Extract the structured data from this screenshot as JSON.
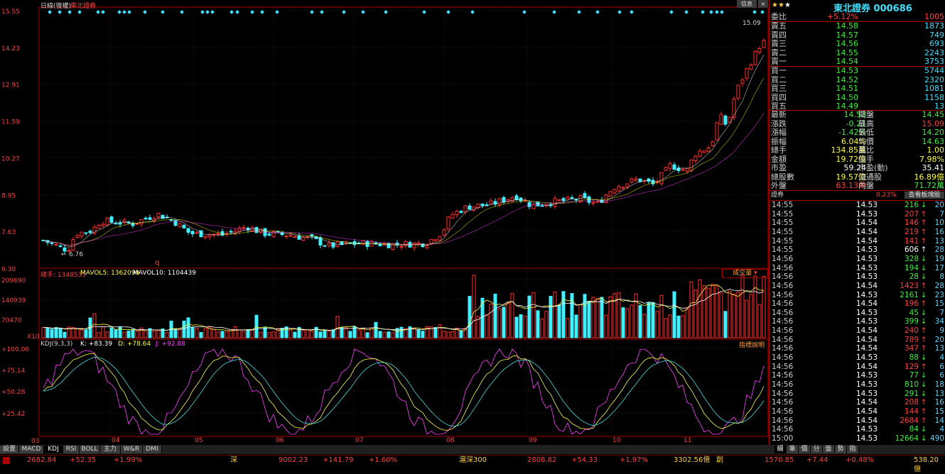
{
  "chart": {
    "label_period": "日線(復權)",
    "label_stock": "東北證券",
    "price_axis": [
      "15.55",
      "14.23",
      "12.91",
      "11.59",
      "10.27",
      "8.95",
      "7.63",
      "6.30"
    ],
    "max_label": "15.09",
    "min_label": "6.76",
    "q_marker": "q",
    "vol_info_label": "總手",
    "vol_info_value": "1348533",
    "vol_ma5_label": "MAVOL5:",
    "vol_ma5_value": "1362099",
    "vol_ma10_label": "MAVOL10:",
    "vol_ma10_value": "1104439",
    "vol_dropdown": "成交量",
    "vol_axis": [
      "209690",
      "140939",
      "70470",
      "X10"
    ],
    "kdj_label": "KDJ(9,3,3)",
    "kdj_k": "K: +83.39",
    "kdj_d": "D: +78.64",
    "kdj_j": "J: +92.88",
    "kdj_help": "指標說明",
    "kdj_axis": [
      "+100.00",
      "+75.14",
      "+50.28",
      "+25.42",
      "03"
    ],
    "month_labels": [
      "04",
      "05",
      "06",
      "07",
      "08",
      "09",
      "10",
      "11"
    ]
  },
  "bottom_tabs": [
    "設置",
    "MACD",
    "KDJ",
    "RSI",
    "BOLL",
    "主力",
    "W&R",
    "DMI"
  ],
  "side_tabs": [
    "細",
    "筆",
    "價",
    "分",
    "盤",
    "勢",
    "指"
  ],
  "colors": {
    "up": "#ff3030",
    "down": "#40f0ff",
    "ma5": "#ffffff",
    "ma10": "#ffff00",
    "ma20": "#ff40ff"
  },
  "quote": {
    "title": "東北證券 000686",
    "info_btn": "信息",
    "weibi_label": "委比",
    "weibi_pct": "+5.12%",
    "weibi_val": "1005",
    "asks": [
      {
        "label": "賣五",
        "price": "14.58",
        "vol": "1873"
      },
      {
        "label": "賣四",
        "price": "14.57",
        "vol": "749"
      },
      {
        "label": "賣三",
        "price": "14.56",
        "vol": "693"
      },
      {
        "label": "賣二",
        "price": "14.55",
        "vol": "2243"
      },
      {
        "label": "賣一",
        "price": "14.54",
        "vol": "3753"
      }
    ],
    "bids": [
      {
        "label": "買一",
        "price": "14.53",
        "vol": "5744"
      },
      {
        "label": "買二",
        "price": "14.52",
        "vol": "2320"
      },
      {
        "label": "買三",
        "price": "14.51",
        "vol": "1081"
      },
      {
        "label": "買四",
        "price": "14.50",
        "vol": "1158"
      },
      {
        "label": "買五",
        "price": "14.49",
        "vol": "13"
      }
    ],
    "stats": [
      {
        "l1": "最新",
        "v1": "14.53",
        "c1": "green",
        "l2": "開盤",
        "v2": "14.45",
        "c2": "green"
      },
      {
        "l1": "漲跌",
        "v1": "-0.21",
        "c1": "green",
        "l2": "最高",
        "v2": "15.09",
        "c2": "red"
      },
      {
        "l1": "漲幅",
        "v1": "-1.42%",
        "c1": "green",
        "l2": "最低",
        "v2": "14.20",
        "c2": "green"
      },
      {
        "l1": "振幅",
        "v1": "6.04%",
        "c1": "yellow",
        "l2": "均價",
        "v2": "14.63",
        "c2": "green"
      },
      {
        "l1": "總手",
        "v1": "134.85萬",
        "c1": "yellow",
        "l2": "量比",
        "v2": "1.00",
        "c2": "yellow"
      },
      {
        "l1": "金額",
        "v1": "19.72億",
        "c1": "yellow",
        "l2": "換手",
        "v2": "7.98%",
        "c2": "yellow"
      },
      {
        "l1": "市盈",
        "v1": "59.24",
        "c1": "white",
        "l2": "市盈(動)",
        "v2": "35.41",
        "c2": "white"
      },
      {
        "l1": "總股數",
        "v1": "19.57億",
        "c1": "yellow",
        "l2": "流通股",
        "v2": "16.89億",
        "c2": "yellow"
      },
      {
        "l1": "外盤",
        "v1": "63.13萬",
        "c1": "red",
        "l2": "內盤",
        "v2": "71.72萬",
        "c2": "green"
      }
    ],
    "sec_label": "證券",
    "sec_pct": "0.23%",
    "sec_btn": "查看板塊股",
    "ticks": [
      {
        "t": "14:55",
        "p": "14.53",
        "v": "216",
        "d": "down",
        "c": "20"
      },
      {
        "t": "14:55",
        "p": "14.53",
        "v": "207",
        "d": "up",
        "c": "7"
      },
      {
        "t": "14:55",
        "p": "14.54",
        "v": "146",
        "d": "up",
        "c": "10"
      },
      {
        "t": "14:55",
        "p": "14.54",
        "v": "219",
        "d": "up",
        "c": "16"
      },
      {
        "t": "14:55",
        "p": "14.54",
        "v": "141",
        "d": "up",
        "c": "13"
      },
      {
        "t": "14:55",
        "p": "14.53",
        "v": "606",
        "d": "white",
        "c": "28"
      },
      {
        "t": "14:56",
        "p": "14.53",
        "v": "328",
        "d": "down",
        "c": "19"
      },
      {
        "t": "14:56",
        "p": "14.53",
        "v": "194",
        "d": "down",
        "c": "17"
      },
      {
        "t": "14:56",
        "p": "14.53",
        "v": "28",
        "d": "down",
        "c": "8"
      },
      {
        "t": "14:56",
        "p": "14.54",
        "v": "1423",
        "d": "up",
        "c": "28"
      },
      {
        "t": "14:56",
        "p": "14.53",
        "v": "2161",
        "d": "down",
        "c": "23"
      },
      {
        "t": "14:56",
        "p": "14.54",
        "v": "196",
        "d": "up",
        "c": "15"
      },
      {
        "t": "14:56",
        "p": "14.53",
        "v": "45",
        "d": "down",
        "c": "7"
      },
      {
        "t": "14:56",
        "p": "14.53",
        "v": "399",
        "d": "down",
        "c": "34"
      },
      {
        "t": "14:56",
        "p": "14.54",
        "v": "240",
        "d": "up",
        "c": "9"
      },
      {
        "t": "14:56",
        "p": "14.54",
        "v": "789",
        "d": "up",
        "c": "20"
      },
      {
        "t": "14:56",
        "p": "14.54",
        "v": "347",
        "d": "up",
        "c": "13"
      },
      {
        "t": "14:56",
        "p": "14.53",
        "v": "88",
        "d": "down",
        "c": "4"
      },
      {
        "t": "14:56",
        "p": "14.54",
        "v": "129",
        "d": "up",
        "c": "6"
      },
      {
        "t": "14:56",
        "p": "14.53",
        "v": "77",
        "d": "down",
        "c": "6"
      },
      {
        "t": "14:56",
        "p": "14.53",
        "v": "810",
        "d": "down",
        "c": "18"
      },
      {
        "t": "14:56",
        "p": "14.53",
        "v": "291",
        "d": "down",
        "c": "13"
      },
      {
        "t": "14:56",
        "p": "14.54",
        "v": "208",
        "d": "up",
        "c": "16"
      },
      {
        "t": "14:56",
        "p": "14.54",
        "v": "144",
        "d": "up",
        "c": "15"
      },
      {
        "t": "14:56",
        "p": "14.54",
        "v": "2684",
        "d": "up",
        "c": "14"
      },
      {
        "t": "14:56",
        "p": "14.53",
        "v": "84",
        "d": "down",
        "c": "4"
      },
      {
        "t": "15:00",
        "p": "14.53",
        "v": "12664",
        "d": "down",
        "c": "490"
      }
    ]
  },
  "ticker": {
    "sh_val": "2682.84",
    "sh_chg": "+52.35",
    "sh_pct": "+1.99%",
    "sz_label": "深",
    "sz_val": "9002.23",
    "sz_chg": "+141.79",
    "sz_pct": "+1.60%",
    "hs_label": "滬深300",
    "hs_val": "2808.82",
    "hs_chg": "+54.33",
    "hs_pct": "+1.97%",
    "hs_amt": "3302.56億",
    "cy_label": "創",
    "cy_val": "1570.85",
    "cy_chg": "+7.44",
    "cy_pct": "+0.48%",
    "cy_amt": "538.20億"
  }
}
